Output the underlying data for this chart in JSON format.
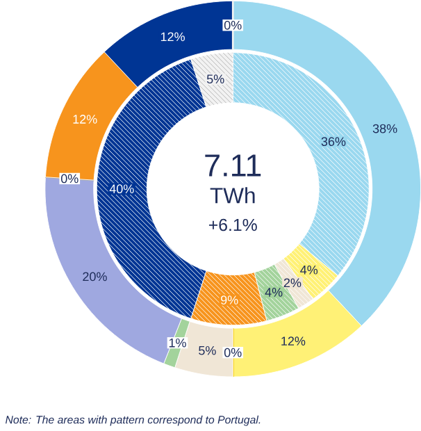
{
  "chart_data": [
    {
      "type": "donut",
      "categories": [
        null,
        null,
        null,
        null,
        null,
        null,
        null,
        null,
        null,
        null
      ],
      "values": [
        38,
        12,
        0,
        5,
        1,
        20,
        0,
        12,
        12,
        0
      ],
      "colors": [
        "#9ad8ef",
        "#fff176",
        "#f5c400",
        "#f0e6d6",
        "#a3d39c",
        "#9fa8e0",
        "#a6a6a6",
        "#f7941d",
        "#003594",
        "#f2f2f2"
      ],
      "value_labels": [
        "38%",
        "12%",
        "0%",
        "5%",
        "1%",
        "20%",
        "0%",
        "12%",
        "12%",
        "0%"
      ],
      "annotations": [
        "7.11",
        "TWh",
        "+6.1%",
        "Note: The areas with pattern correspond to Portugal."
      ]
    },
    {
      "type": "donut",
      "categories": [
        null,
        null,
        null,
        null,
        null,
        null,
        null
      ],
      "values": [
        36,
        4,
        2,
        4,
        9,
        40,
        5
      ],
      "colors": [
        "#9ad8ef",
        "#fff176",
        "#f0e6d6",
        "#a3d39c",
        "#f7941d",
        "#003594",
        "#f2f2f2"
      ],
      "value_labels": [
        "36%",
        "4%",
        "2%",
        "4%",
        "9%",
        "40%",
        "5%"
      ]
    }
  ]
}
